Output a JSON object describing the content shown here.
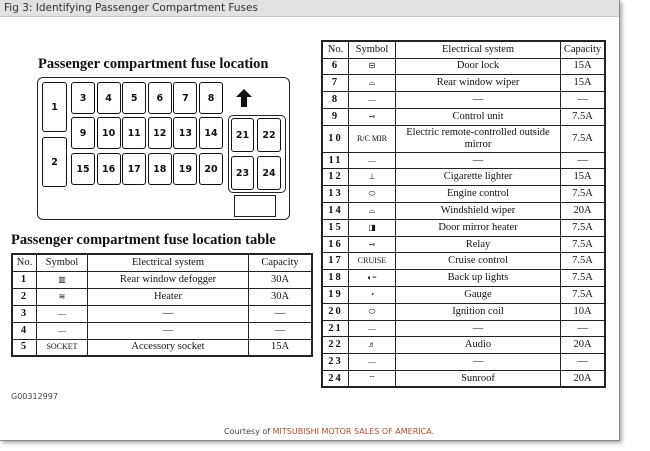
{
  "window_title": "Fig 3: Identifying Passenger Compartment Fuses",
  "diagram": {
    "title": "Passenger compartment fuse location",
    "fuses": [
      "1",
      "2",
      "3",
      "4",
      "5",
      "6",
      "7",
      "8",
      "9",
      "10",
      "11",
      "12",
      "13",
      "14",
      "15",
      "16",
      "17",
      "18",
      "19",
      "20",
      "21",
      "22",
      "23",
      "24"
    ],
    "arrow_icon": "up-arrow"
  },
  "table1": {
    "title": "Passenger compartment fuse location table",
    "headers": [
      "No.",
      "Symbol",
      "Electrical system",
      "Capacity"
    ],
    "rows": [
      {
        "no": "1",
        "symbol": "▥",
        "symbol_icon": "rear-defogger-icon",
        "system": "Rear window defogger",
        "capacity": "30A"
      },
      {
        "no": "2",
        "symbol": "≋",
        "symbol_icon": "heater-icon",
        "system": "Heater",
        "capacity": "30A"
      },
      {
        "no": "3",
        "symbol": "—",
        "system": "—",
        "capacity": "—"
      },
      {
        "no": "4",
        "symbol": "—",
        "system": "—",
        "capacity": "—"
      },
      {
        "no": "5",
        "symbol": "SOCKET",
        "system": "Accessory socket",
        "capacity": "15A"
      }
    ]
  },
  "table2": {
    "headers": [
      "No.",
      "Symbol",
      "Electrical system",
      "Capacity"
    ],
    "rows": [
      {
        "no": "6",
        "symbol": "⊟",
        "symbol_icon": "door-lock-icon",
        "system": "Door lock",
        "capacity": "15A"
      },
      {
        "no": "7",
        "symbol": "⌓",
        "symbol_icon": "rear-wiper-icon",
        "system": "Rear window wiper",
        "capacity": "15A"
      },
      {
        "no": "8",
        "symbol": "—",
        "system": "—",
        "capacity": "—"
      },
      {
        "no": "9",
        "symbol": "⊸",
        "symbol_icon": "control-unit-icon",
        "system": "Control unit",
        "capacity": "7.5A"
      },
      {
        "no": "10",
        "symbol": "R/C MIR",
        "system": "Electric remote-controlled outside mirror",
        "capacity": "7.5A"
      },
      {
        "no": "11",
        "symbol": "—",
        "system": "—",
        "capacity": "—"
      },
      {
        "no": "12",
        "symbol": "⊥",
        "symbol_icon": "cigarette-lighter-icon",
        "system": "Cigarette lighter",
        "capacity": "15A"
      },
      {
        "no": "13",
        "symbol": "⬭",
        "symbol_icon": "engine-icon",
        "system": "Engine control",
        "capacity": "7.5A"
      },
      {
        "no": "14",
        "symbol": "⌓",
        "symbol_icon": "windshield-wiper-icon",
        "system": "Windshield wiper",
        "capacity": "20A"
      },
      {
        "no": "15",
        "symbol": "◨",
        "symbol_icon": "mirror-heater-icon",
        "system": "Door mirror heater",
        "capacity": "7.5A"
      },
      {
        "no": "16",
        "symbol": "⊸",
        "symbol_icon": "relay-icon",
        "system": "Relay",
        "capacity": "7.5A"
      },
      {
        "no": "17",
        "symbol": "CRUISE",
        "system": "Cruise control",
        "capacity": "7.5A"
      },
      {
        "no": "18",
        "symbol": "◐=",
        "symbol_icon": "backup-light-icon",
        "system": "Back up lights",
        "capacity": "7.5A"
      },
      {
        "no": "19",
        "symbol": "◔",
        "symbol_icon": "gauge-icon",
        "system": "Gauge",
        "capacity": "7.5A"
      },
      {
        "no": "20",
        "symbol": "⬭",
        "symbol_icon": "ignition-coil-icon",
        "system": "Ignition coil",
        "capacity": "10A"
      },
      {
        "no": "21",
        "symbol": "—",
        "system": "—",
        "capacity": "—"
      },
      {
        "no": "22",
        "symbol": "♬",
        "symbol_icon": "audio-icon",
        "system": "Audio",
        "capacity": "20A"
      },
      {
        "no": "23",
        "symbol": "—",
        "system": "—",
        "capacity": "—"
      },
      {
        "no": "24",
        "symbol": "⌔",
        "symbol_icon": "sunroof-icon",
        "system": "Sunroof",
        "capacity": "20A"
      }
    ]
  },
  "figure_id": "G00312997",
  "credit": {
    "prefix": "Courtesy of ",
    "source": "MITSUBISHI MOTOR SALES OF AMERICA."
  },
  "colors": {
    "credit_link": "#b14b2b",
    "titlebar": "#e1e1e1"
  }
}
